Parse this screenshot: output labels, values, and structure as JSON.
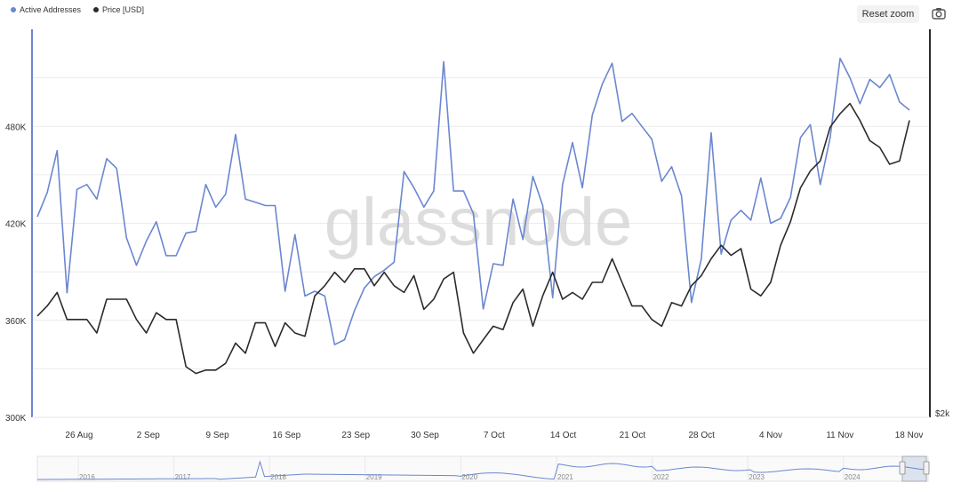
{
  "legend": [
    {
      "label": "Active Addresses",
      "color": "#6b87d0"
    },
    {
      "label": "Price [USD]",
      "color": "#2b2b2b"
    }
  ],
  "toolbar": {
    "reset_zoom": "Reset zoom",
    "camera_icon": "camera-icon"
  },
  "watermark": "glassnode",
  "chart_data": {
    "type": "line",
    "x_ticks": [
      "26 Aug",
      "2 Sep",
      "9 Sep",
      "16 Sep",
      "23 Sep",
      "30 Sep",
      "7 Oct",
      "14 Oct",
      "21 Oct",
      "28 Oct",
      "4 Nov",
      "11 Nov",
      "18 Nov"
    ],
    "y_left_ticks": [
      "300K",
      "360K",
      "420K",
      "480K"
    ],
    "y_left_range": [
      300000,
      540000
    ],
    "y_right_ticks": [
      "$2k"
    ],
    "grid": true,
    "legend_position": "top-left",
    "x_start": "2024-08-20",
    "x_end": "2024-11-19",
    "series": [
      {
        "name": "Active Addresses",
        "axis": "left",
        "color": "#6b87d0",
        "values": [
          424000,
          439000,
          465000,
          377000,
          441000,
          444000,
          435000,
          460000,
          454000,
          411000,
          394000,
          409000,
          421000,
          400000,
          400000,
          414000,
          415000,
          444000,
          430000,
          438000,
          475000,
          435000,
          433000,
          431000,
          431000,
          378000,
          413000,
          375000,
          378000,
          375000,
          345000,
          348000,
          366000,
          380000,
          387000,
          391000,
          396000,
          452000,
          442000,
          430000,
          440000,
          520000,
          440000,
          440000,
          426000,
          367000,
          395000,
          394000,
          435000,
          410000,
          449000,
          431000,
          374000,
          444000,
          470000,
          442000,
          487000,
          506000,
          519000,
          483000,
          488000,
          480000,
          472000,
          446000,
          455000,
          437000,
          371000,
          398000,
          476000,
          401000,
          422000,
          428000,
          422000,
          448000,
          420000,
          423000,
          436000,
          473000,
          481000,
          444000,
          473000,
          522000,
          510000,
          494000,
          509000,
          504000,
          512000,
          495000,
          490000
        ],
        "price_values": [
          5000,
          5300,
          5700,
          4900,
          4900,
          4900,
          4500,
          5500,
          5500,
          5500,
          4900,
          4500,
          5100,
          4900,
          4900,
          3500,
          3300,
          3400,
          3400,
          3600,
          4200,
          3900,
          4800,
          4800,
          4100,
          4800,
          4500,
          4400,
          5600,
          5900,
          6300,
          6000,
          6400,
          6400,
          5900,
          6300,
          5900,
          5700,
          6200,
          5200,
          5500,
          6100,
          6300,
          4500,
          3900,
          4300,
          4700,
          4600,
          5400,
          5800,
          4700,
          5600,
          6300,
          5500,
          5700,
          5500,
          6000,
          6000,
          6700,
          6000,
          5300,
          5300,
          4900,
          4700,
          5400,
          5300,
          5900,
          6200,
          6700,
          7100,
          6800,
          7000,
          5800,
          5600,
          6000,
          7100,
          7800,
          8800,
          9300,
          9600,
          10600,
          11000,
          11300,
          10800,
          10200,
          10000,
          9500,
          9600,
          10800
        ]
      },
      {
        "name": "Price [USD]",
        "axis": "right",
        "color": "#2b2b2b"
      }
    ],
    "navigator": {
      "years": [
        "2016",
        "2017",
        "2018",
        "2019",
        "2020",
        "2021",
        "2022",
        "2023",
        "2024"
      ]
    }
  }
}
